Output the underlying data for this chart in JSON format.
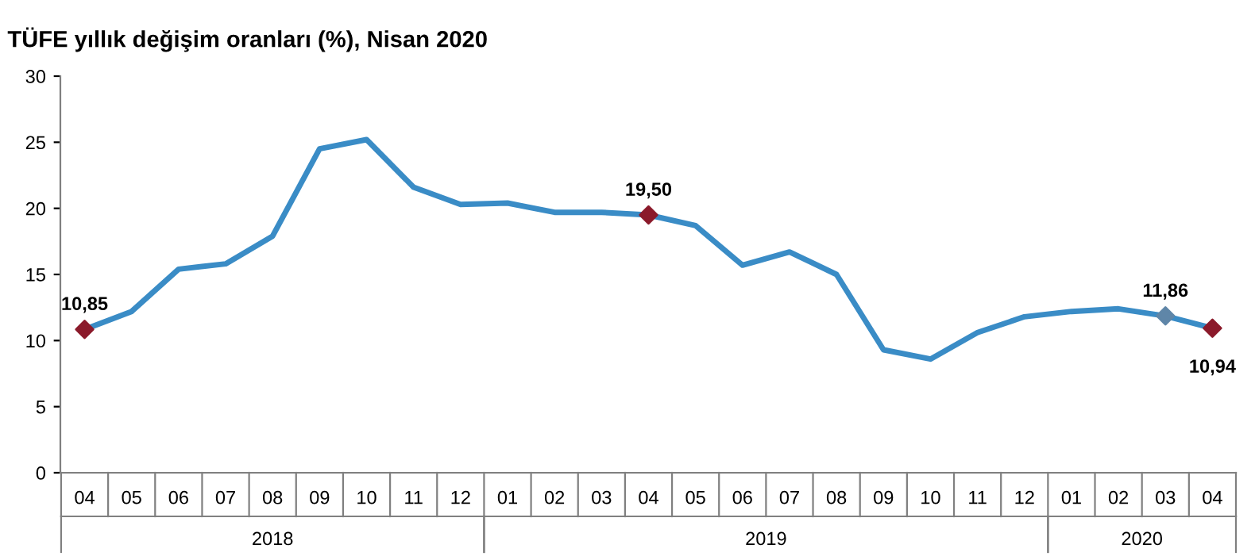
{
  "chart_data": {
    "type": "line",
    "title": "TÜFE yıllık değişim oranları (%), Nisan 2020",
    "x": [
      "2018-04",
      "2018-05",
      "2018-06",
      "2018-07",
      "2018-08",
      "2018-09",
      "2018-10",
      "2018-11",
      "2018-12",
      "2019-01",
      "2019-02",
      "2019-03",
      "2019-04",
      "2019-05",
      "2019-06",
      "2019-07",
      "2019-08",
      "2019-09",
      "2019-10",
      "2019-11",
      "2019-12",
      "2020-01",
      "2020-02",
      "2020-03",
      "2020-04"
    ],
    "xticks": [
      {
        "value": "2018-04",
        "label": "04"
      },
      {
        "value": "2018-05",
        "label": "05"
      },
      {
        "value": "2018-06",
        "label": "06"
      },
      {
        "value": "2018-07",
        "label": "07"
      },
      {
        "value": "2018-08",
        "label": "08"
      },
      {
        "value": "2018-09",
        "label": "09"
      },
      {
        "value": "2018-10",
        "label": "10"
      },
      {
        "value": "2018-11",
        "label": "11"
      },
      {
        "value": "2018-12",
        "label": "12"
      },
      {
        "value": "2019-01",
        "label": "01"
      },
      {
        "value": "2019-02",
        "label": "02"
      },
      {
        "value": "2019-03",
        "label": "03"
      },
      {
        "value": "2019-04",
        "label": "04"
      },
      {
        "value": "2019-05",
        "label": "05"
      },
      {
        "value": "2019-06",
        "label": "06"
      },
      {
        "value": "2019-07",
        "label": "07"
      },
      {
        "value": "2019-08",
        "label": "08"
      },
      {
        "value": "2019-09",
        "label": "09"
      },
      {
        "value": "2019-10",
        "label": "10"
      },
      {
        "value": "2019-11",
        "label": "11"
      },
      {
        "value": "2019-12",
        "label": "12"
      },
      {
        "value": "2020-01",
        "label": "01"
      },
      {
        "value": "2020-02",
        "label": "02"
      },
      {
        "value": "2020-03",
        "label": "03"
      },
      {
        "value": "2020-04",
        "label": "04"
      }
    ],
    "xlim": [
      "2018-03-16",
      "2020-04-16"
    ],
    "annotations": [
      "2018",
      "2019",
      "2020"
    ],
    "series": [
      {
        "color": "#3a8cc6",
        "marker": "none",
        "values": [
          10.85,
          12.2,
          15.4,
          15.8,
          17.9,
          24.5,
          25.2,
          21.6,
          20.3,
          20.4,
          19.7,
          19.7,
          19.5,
          18.7,
          15.7,
          16.7,
          15.0,
          9.3,
          8.6,
          10.6,
          11.8,
          12.2,
          12.4,
          11.86,
          10.94
        ]
      },
      {
        "type": "scatter",
        "marker": "diamond",
        "x": [
          "2018-04",
          "2019-04",
          "2020-03",
          "2020-04"
        ],
        "values": [
          10.85,
          19.5,
          11.86,
          10.94
        ],
        "colors": [
          "#8b1a2b",
          "#8b1a2b",
          "#5f86a8",
          "#8b1a2b"
        ],
        "value_labels": [
          "10,85",
          "19,50",
          "11,86",
          "10,94"
        ]
      }
    ],
    "line_style": "solid",
    "ylim": [
      0,
      30
    ],
    "yticks": [
      0,
      5,
      10,
      15,
      20,
      25,
      30
    ],
    "grid": false,
    "legend": false
  }
}
